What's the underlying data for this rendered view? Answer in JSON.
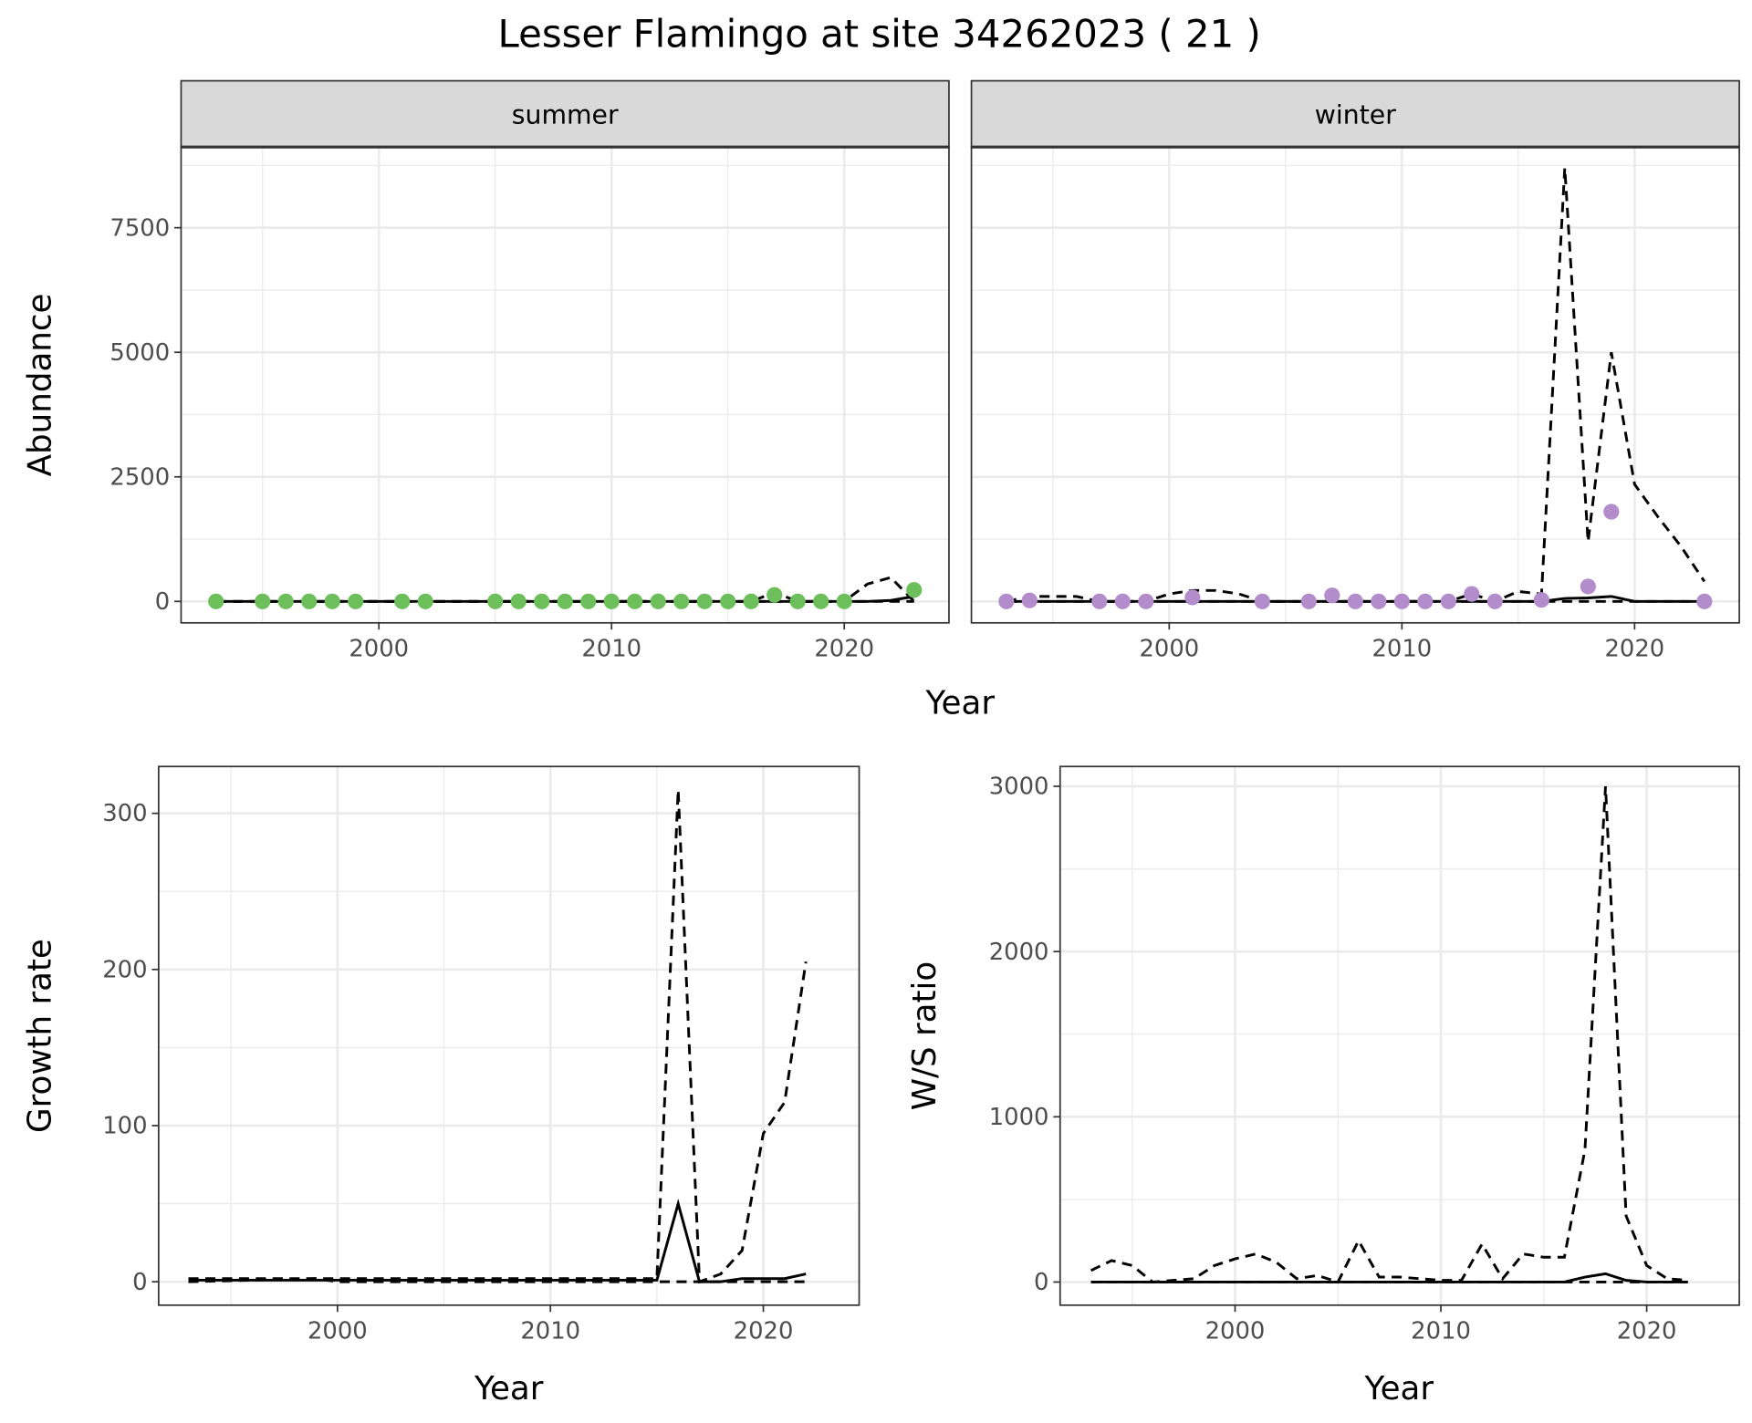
{
  "title": "Lesser Flamingo at site 34262023 ( 21 )",
  "colors": {
    "summer": "#6dbf5b",
    "winter": "#b38ccb",
    "line": "#000000",
    "grid": "#ebebeb",
    "strip": "#d9d9d9"
  },
  "chart_data": [
    {
      "type": "scatter+line",
      "facet": "summer",
      "xlabel": "Year",
      "ylabel": "Abundance",
      "xlim": [
        1991.5,
        2024.5
      ],
      "ylim": [
        -430,
        9120
      ],
      "xticks": [
        "2000",
        "2010",
        "2020"
      ],
      "yticks": [
        "0",
        "2500",
        "5000",
        "7500"
      ],
      "points": {
        "x": [
          1993,
          1995,
          1996,
          1997,
          1998,
          1999,
          2001,
          2002,
          2005,
          2006,
          2007,
          2008,
          2009,
          2010,
          2011,
          2012,
          2013,
          2014,
          2015,
          2016,
          2017,
          2018,
          2019,
          2020,
          2023
        ],
        "y": [
          0,
          0,
          0,
          0,
          0,
          0,
          0,
          0,
          0,
          0,
          0,
          0,
          0,
          0,
          0,
          0,
          0,
          0,
          0,
          0,
          130,
          0,
          0,
          0,
          230
        ]
      },
      "lines": [
        {
          "style": "solid",
          "x": [
            1993,
            2000,
            2010,
            2020,
            2021,
            2022,
            2023
          ],
          "y": [
            0,
            0,
            0,
            0,
            0,
            20,
            100
          ]
        },
        {
          "style": "dashed",
          "x": [
            1993,
            2000,
            2010,
            2015,
            2016,
            2017,
            2018,
            2020,
            2021,
            2022,
            2023
          ],
          "y": [
            0,
            0,
            0,
            0,
            0,
            180,
            0,
            0,
            350,
            480,
            0
          ]
        },
        {
          "style": "dashed",
          "x": [
            1993,
            2023
          ],
          "y": [
            0,
            0
          ]
        }
      ]
    },
    {
      "type": "scatter+line",
      "facet": "winter",
      "xlabel": "Year",
      "ylabel": "Abundance",
      "xlim": [
        1991.5,
        2024.5
      ],
      "ylim": [
        -430,
        9120
      ],
      "xticks": [
        "2000",
        "2010",
        "2020"
      ],
      "yticks": [
        "0",
        "2500",
        "5000",
        "7500"
      ],
      "points": {
        "x": [
          1993,
          1994,
          1997,
          1998,
          1999,
          2001,
          2004,
          2006,
          2007,
          2008,
          2009,
          2010,
          2011,
          2012,
          2013,
          2014,
          2016,
          2018,
          2019,
          2023
        ],
        "y": [
          0,
          20,
          0,
          0,
          0,
          80,
          0,
          0,
          120,
          0,
          0,
          0,
          0,
          0,
          150,
          0,
          30,
          300,
          1800,
          0
        ]
      },
      "lines": [
        {
          "style": "solid",
          "x": [
            1993,
            2000,
            2010,
            2016,
            2017,
            2018,
            2019,
            2020,
            2023
          ],
          "y": [
            0,
            0,
            0,
            0,
            60,
            70,
            100,
            0,
            0
          ]
        },
        {
          "style": "dashed",
          "x": [
            1993,
            1994,
            1996,
            1997,
            1999,
            2000,
            2001,
            2002,
            2003,
            2004,
            2012,
            2013,
            2014,
            2015,
            2016,
            2017,
            2018,
            2019,
            2020,
            2021,
            2022,
            2023
          ],
          "y": [
            0,
            100,
            100,
            0,
            0,
            150,
            220,
            220,
            150,
            0,
            0,
            150,
            0,
            200,
            150,
            8700,
            1200,
            5000,
            2350,
            1700,
            1100,
            400
          ]
        },
        {
          "style": "dashed",
          "x": [
            1993,
            2017,
            2018,
            2023
          ],
          "y": [
            0,
            0,
            0,
            0
          ]
        }
      ]
    },
    {
      "type": "line",
      "xlabel": "Year",
      "ylabel": "Growth rate",
      "xlim": [
        1991.6,
        2024.5
      ],
      "ylim": [
        -15,
        330
      ],
      "xticks": [
        "2000",
        "2010",
        "2020"
      ],
      "yticks": [
        "0",
        "100",
        "200",
        "300"
      ],
      "lines": [
        {
          "style": "solid",
          "x": [
            1993,
            1999,
            2000,
            2015,
            2016,
            2017,
            2018,
            2019,
            2020,
            2021,
            2022
          ],
          "y": [
            1,
            1,
            1,
            1,
            50,
            0,
            0,
            2,
            2,
            2,
            5
          ]
        },
        {
          "style": "dashed",
          "x": [
            1993,
            2015,
            2016,
            2017,
            2018,
            2019,
            2020,
            2021,
            2022
          ],
          "y": [
            2,
            2,
            315,
            0,
            5,
            20,
            95,
            115,
            205
          ]
        },
        {
          "style": "dashed",
          "x": [
            1993,
            1999,
            2000,
            2015,
            2016,
            2017,
            2018,
            2022
          ],
          "y": [
            0,
            2,
            0,
            0,
            0,
            0,
            0,
            0
          ]
        }
      ]
    },
    {
      "type": "line",
      "xlabel": "Year",
      "ylabel": "W/S ratio",
      "xlim": [
        1991.5,
        2024.5
      ],
      "ylim": [
        -140,
        3120
      ],
      "xticks": [
        "2000",
        "2010",
        "2020"
      ],
      "yticks": [
        "0",
        "1000",
        "2000",
        "3000"
      ],
      "lines": [
        {
          "style": "solid",
          "x": [
            1993,
            2000,
            2016,
            2017,
            2018,
            2019,
            2020,
            2022
          ],
          "y": [
            0,
            0,
            0,
            30,
            50,
            10,
            0,
            0
          ]
        },
        {
          "style": "dashed",
          "x": [
            1993,
            1994,
            1995,
            1996,
            1997,
            1998,
            1999,
            2000,
            2001,
            2002,
            2003,
            2004,
            2005,
            2006,
            2007,
            2008,
            2009,
            2010,
            2011,
            2012,
            2013,
            2014,
            2015,
            2016,
            2017,
            2018,
            2019,
            2020,
            2021,
            2022
          ],
          "y": [
            70,
            130,
            100,
            0,
            10,
            20,
            100,
            140,
            170,
            120,
            20,
            40,
            0,
            250,
            30,
            30,
            20,
            10,
            10,
            230,
            20,
            170,
            150,
            150,
            800,
            3000,
            400,
            100,
            20,
            10
          ]
        },
        {
          "style": "dashed",
          "x": [
            1993,
            2022
          ],
          "y": [
            0,
            0
          ]
        }
      ]
    }
  ]
}
